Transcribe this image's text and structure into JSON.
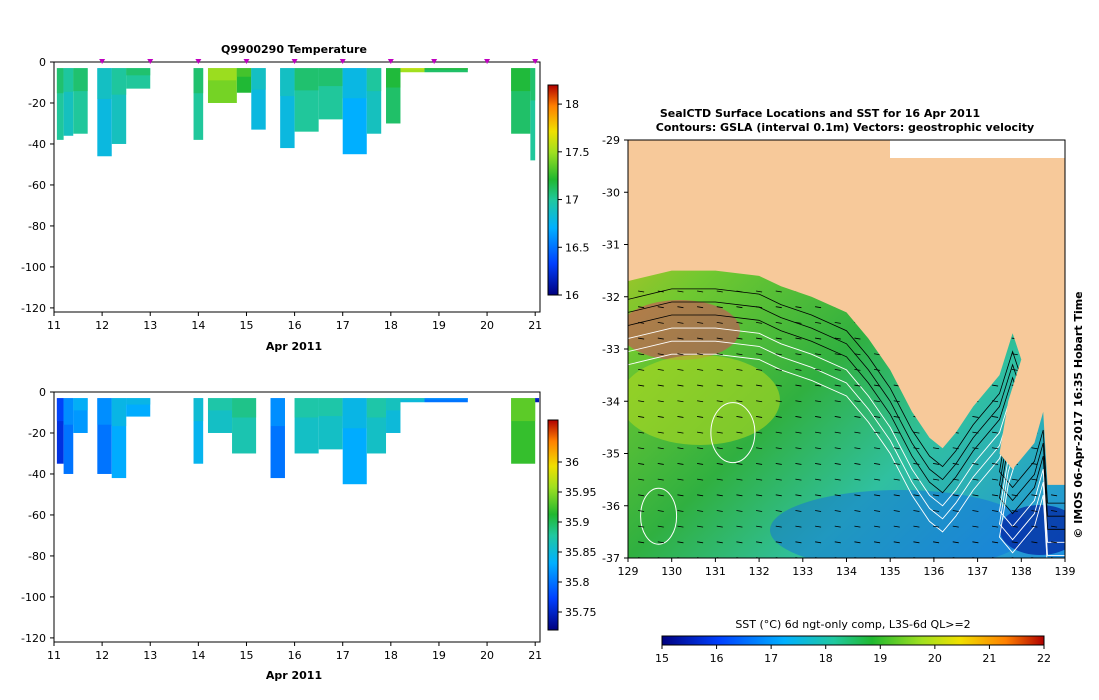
{
  "chart_data": [
    {
      "type": "heatmap",
      "title": "Q9900290  Temperature",
      "xlabel": "Apr 2011",
      "xticks": [
        "11",
        "12",
        "13",
        "14",
        "15",
        "16",
        "17",
        "18",
        "19",
        "20",
        "21"
      ],
      "xlim": [
        11,
        21.1
      ],
      "yticks": [
        "0",
        "-20",
        "-40",
        "-60",
        "-80",
        "-100",
        "-120"
      ],
      "ylim": [
        -122,
        0
      ],
      "colorbar": {
        "ticks": [
          "16",
          "16.5",
          "17",
          "17.5",
          "18"
        ],
        "range": [
          16,
          18.2
        ]
      },
      "profile_markers": [
        12,
        13,
        14,
        15,
        16,
        17,
        18,
        18.9,
        20,
        21
      ],
      "profiles": [
        {
          "t0": 11.06,
          "t1": 11.2,
          "depth": -38,
          "value": 17.0
        },
        {
          "t0": 11.2,
          "t1": 11.4,
          "depth": -36,
          "value": 16.9
        },
        {
          "t0": 11.4,
          "t1": 11.7,
          "depth": -35,
          "value": 17.0
        },
        {
          "t0": 11.9,
          "t1": 12.2,
          "depth": -46,
          "value": 16.8
        },
        {
          "t0": 12.2,
          "t1": 12.5,
          "depth": -40,
          "value": 16.9
        },
        {
          "t0": 12.5,
          "t1": 13.0,
          "depth": -13,
          "value": 17.0
        },
        {
          "t0": 13.9,
          "t1": 14.1,
          "depth": -38,
          "value": 17.0
        },
        {
          "t0": 14.2,
          "t1": 14.8,
          "depth": -20,
          "value": 17.4
        },
        {
          "t0": 14.8,
          "t1": 15.1,
          "depth": -15,
          "value": 17.2
        },
        {
          "t0": 15.1,
          "t1": 15.4,
          "depth": -33,
          "value": 16.8
        },
        {
          "t0": 15.7,
          "t1": 16.0,
          "depth": -42,
          "value": 16.8
        },
        {
          "t0": 16.0,
          "t1": 16.5,
          "depth": -34,
          "value": 17.0
        },
        {
          "t0": 16.5,
          "t1": 17.0,
          "depth": -28,
          "value": 17.0
        },
        {
          "t0": 17.0,
          "t1": 17.5,
          "depth": -45,
          "value": 16.7
        },
        {
          "t0": 17.5,
          "t1": 17.8,
          "depth": -35,
          "value": 16.9
        },
        {
          "t0": 17.9,
          "t1": 18.2,
          "depth": -30,
          "value": 17.1
        },
        {
          "t0": 18.2,
          "t1": 18.7,
          "depth": -5,
          "value": 17.5
        },
        {
          "t0": 18.7,
          "t1": 19.6,
          "depth": -5,
          "value": 17.1
        },
        {
          "t0": 20.5,
          "t1": 20.9,
          "depth": -35,
          "value": 17.1
        },
        {
          "t0": 20.9,
          "t1": 21.0,
          "depth": -48,
          "value": 17.0
        }
      ]
    },
    {
      "type": "heatmap",
      "title": "",
      "xlabel": "Apr 2011",
      "xticks": [
        "11",
        "12",
        "13",
        "14",
        "15",
        "16",
        "17",
        "18",
        "19",
        "20",
        "21"
      ],
      "xlim": [
        11,
        21.1
      ],
      "yticks": [
        "0",
        "-20",
        "-40",
        "-60",
        "-80",
        "-100",
        "-120"
      ],
      "ylim": [
        -122,
        0
      ],
      "colorbar": {
        "ticks": [
          "35.75",
          "35.8",
          "35.85",
          "35.9",
          "35.95",
          "36"
        ],
        "range": [
          35.72,
          36.07
        ]
      },
      "profiles": [
        {
          "t0": 11.06,
          "t1": 11.2,
          "depth": -35,
          "value": 35.76
        },
        {
          "t0": 11.2,
          "t1": 11.4,
          "depth": -40,
          "value": 35.8
        },
        {
          "t0": 11.4,
          "t1": 11.7,
          "depth": -20,
          "value": 35.82
        },
        {
          "t0": 11.9,
          "t1": 12.2,
          "depth": -40,
          "value": 35.8
        },
        {
          "t0": 12.2,
          "t1": 12.5,
          "depth": -42,
          "value": 35.83
        },
        {
          "t0": 12.5,
          "t1": 13.0,
          "depth": -12,
          "value": 35.83
        },
        {
          "t0": 13.9,
          "t1": 14.1,
          "depth": -35,
          "value": 35.84
        },
        {
          "t0": 14.2,
          "t1": 14.7,
          "depth": -20,
          "value": 35.86
        },
        {
          "t0": 14.7,
          "t1": 15.2,
          "depth": -30,
          "value": 35.87
        },
        {
          "t0": 15.5,
          "t1": 15.8,
          "depth": -42,
          "value": 35.8
        },
        {
          "t0": 16.0,
          "t1": 16.5,
          "depth": -30,
          "value": 35.86
        },
        {
          "t0": 16.5,
          "t1": 17.0,
          "depth": -28,
          "value": 35.86
        },
        {
          "t0": 17.0,
          "t1": 17.5,
          "depth": -45,
          "value": 35.83
        },
        {
          "t0": 17.5,
          "t1": 17.9,
          "depth": -30,
          "value": 35.86
        },
        {
          "t0": 17.9,
          "t1": 18.2,
          "depth": -20,
          "value": 35.85
        },
        {
          "t0": 18.2,
          "t1": 18.7,
          "depth": -5,
          "value": 35.85
        },
        {
          "t0": 18.7,
          "t1": 19.6,
          "depth": -5,
          "value": 35.8
        },
        {
          "t0": 20.5,
          "t1": 21.0,
          "depth": -35,
          "value": 35.92
        },
        {
          "t0": 21.0,
          "t1": 21.08,
          "depth": -5,
          "value": 35.74
        }
      ]
    },
    {
      "type": "heatmap",
      "title": "SealCTD Surface Locations and SST for 16 Apr 2011",
      "subtitle": "Contours: GSLA (interval 0.1m) Vectors: geostrophic velocity",
      "xticks": [
        "129",
        "130",
        "131",
        "132",
        "133",
        "134",
        "135",
        "136",
        "137",
        "138",
        "139"
      ],
      "xlim": [
        129,
        139
      ],
      "yticks": [
        "-29",
        "-30",
        "-31",
        "-32",
        "-33",
        "-34",
        "-35",
        "-36",
        "-37"
      ],
      "ylim": [
        -37,
        -29
      ],
      "coastline": [
        [
          129,
          -31.7
        ],
        [
          130,
          -31.5
        ],
        [
          131,
          -31.5
        ],
        [
          132,
          -31.6
        ],
        [
          132.5,
          -31.8
        ],
        [
          133.2,
          -32.0
        ],
        [
          134,
          -32.3
        ],
        [
          134.5,
          -32.8
        ],
        [
          135,
          -33.4
        ],
        [
          135.5,
          -34.2
        ],
        [
          135.9,
          -34.7
        ],
        [
          136.2,
          -34.9
        ],
        [
          136.5,
          -34.6
        ],
        [
          136.9,
          -34.1
        ],
        [
          137.5,
          -33.5
        ],
        [
          137.8,
          -32.7
        ],
        [
          138,
          -33.2
        ],
        [
          137.7,
          -34.0
        ],
        [
          137.5,
          -35.0
        ],
        [
          137.8,
          -35.3
        ],
        [
          138.3,
          -34.8
        ],
        [
          138.5,
          -34.2
        ],
        [
          138.6,
          -35.6
        ],
        [
          139,
          -35.6
        ]
      ],
      "colorbar": {
        "label": "SST (°C) 6d ngt-only comp, L3S-6d QL>=2",
        "ticks": [
          "15",
          "16",
          "17",
          "18",
          "19",
          "20",
          "21",
          "22"
        ],
        "range": [
          15,
          22
        ]
      },
      "side_label": "© IMOS 06-Apr-2017 16:35 Hobart Time"
    }
  ]
}
